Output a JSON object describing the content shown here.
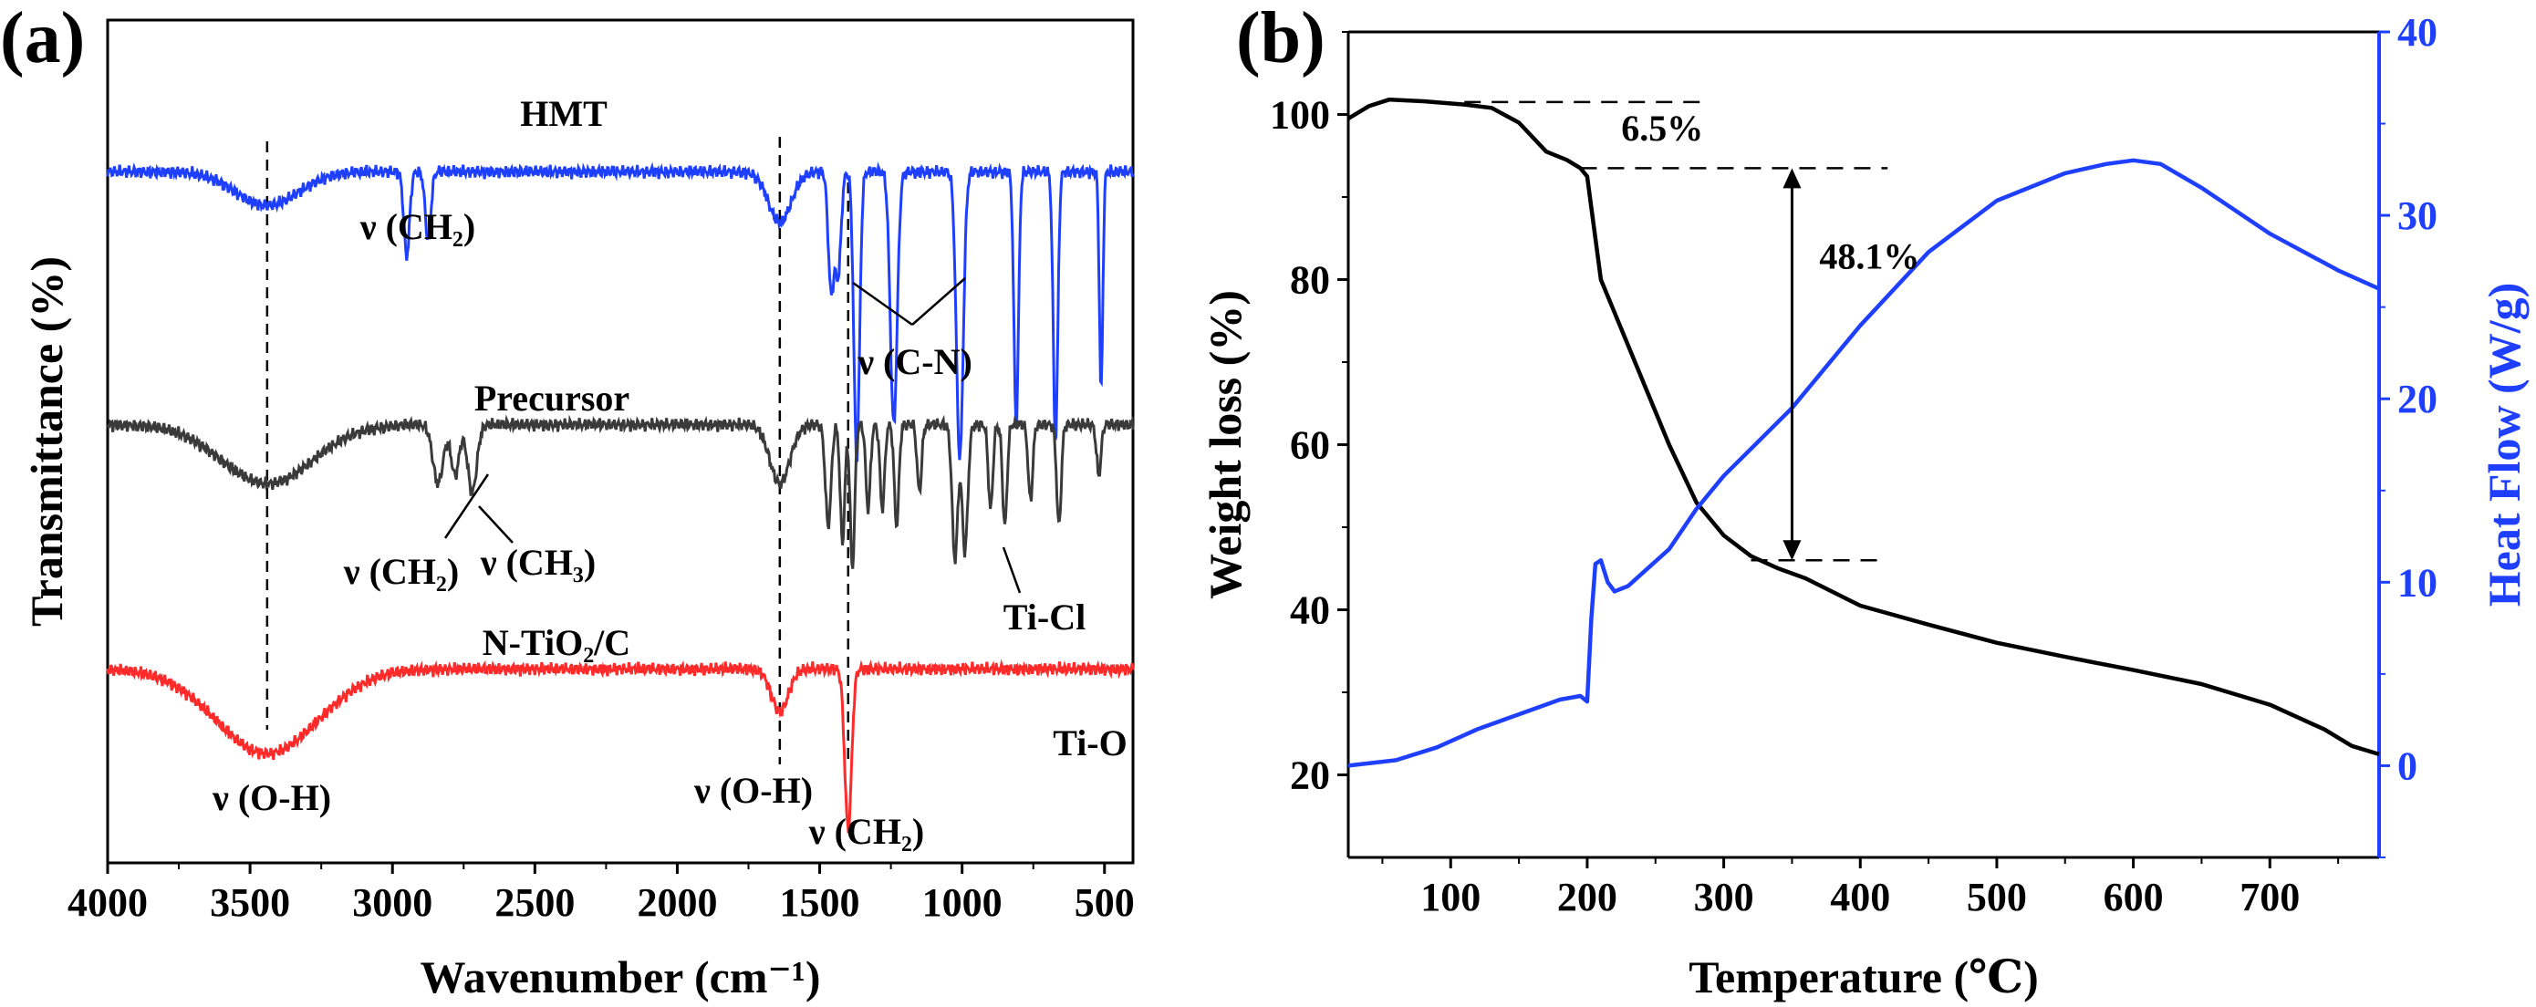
{
  "chart_data": [
    {
      "type": "line",
      "panel_label": "(a)",
      "title": "",
      "xlabel": "Wavenumber (cm⁻¹)",
      "ylabel": "Transmittance (%)",
      "xlim": [
        4000,
        400
      ],
      "x_reversed": true,
      "xticks": [
        4000,
        3500,
        3000,
        2500,
        2000,
        1500,
        1000,
        500
      ],
      "yticks_shown": false,
      "grid": false,
      "series": [
        {
          "name": "HMT",
          "label": "HMT",
          "color": "#1f3fff",
          "baseline": 0.82,
          "peaks": [
            {
              "x": 3440,
              "depth": 0.04,
              "width": 110
            },
            {
              "x": 2950,
              "depth": 0.1,
              "width": 10
            },
            {
              "x": 2875,
              "depth": 0.08,
              "width": 10
            },
            {
              "x": 1640,
              "depth": 0.06,
              "width": 40
            },
            {
              "x": 1460,
              "depth": 0.14,
              "width": 10
            },
            {
              "x": 1435,
              "depth": 0.12,
              "width": 10
            },
            {
              "x": 1370,
              "depth": 0.34,
              "width": 10
            },
            {
              "x": 1240,
              "depth": 0.3,
              "width": 12
            },
            {
              "x": 1008,
              "depth": 0.34,
              "width": 12
            },
            {
              "x": 810,
              "depth": 0.3,
              "width": 8
            },
            {
              "x": 672,
              "depth": 0.32,
              "width": 8
            },
            {
              "x": 512,
              "depth": 0.26,
              "width": 6
            }
          ]
        },
        {
          "name": "Precursor",
          "label": "Precursor",
          "color": "#3a3a3a",
          "baseline": 0.52,
          "peaks": [
            {
              "x": 3440,
              "depth": 0.07,
              "width": 160
            },
            {
              "x": 2840,
              "depth": 0.07,
              "width": 18
            },
            {
              "x": 2780,
              "depth": 0.06,
              "width": 14
            },
            {
              "x": 2720,
              "depth": 0.08,
              "width": 16
            },
            {
              "x": 1640,
              "depth": 0.07,
              "width": 35
            },
            {
              "x": 1470,
              "depth": 0.12,
              "width": 10
            },
            {
              "x": 1420,
              "depth": 0.14,
              "width": 8
            },
            {
              "x": 1385,
              "depth": 0.17,
              "width": 8
            },
            {
              "x": 1330,
              "depth": 0.1,
              "width": 8
            },
            {
              "x": 1280,
              "depth": 0.1,
              "width": 8
            },
            {
              "x": 1230,
              "depth": 0.12,
              "width": 8
            },
            {
              "x": 1150,
              "depth": 0.08,
              "width": 8
            },
            {
              "x": 1025,
              "depth": 0.16,
              "width": 10
            },
            {
              "x": 990,
              "depth": 0.15,
              "width": 10
            },
            {
              "x": 900,
              "depth": 0.1,
              "width": 8
            },
            {
              "x": 850,
              "depth": 0.12,
              "width": 8
            },
            {
              "x": 760,
              "depth": 0.09,
              "width": 8
            },
            {
              "x": 660,
              "depth": 0.12,
              "width": 8
            },
            {
              "x": 520,
              "depth": 0.06,
              "width": 8
            }
          ]
        },
        {
          "name": "N-TiO2/C",
          "label": "N-TiO₂/C",
          "color": "#ff2a2a",
          "baseline": 0.23,
          "peaks": [
            {
              "x": 3440,
              "depth": 0.1,
              "width": 180
            },
            {
              "x": 1640,
              "depth": 0.05,
              "width": 30
            },
            {
              "x": 1400,
              "depth": 0.19,
              "width": 12
            }
          ]
        }
      ],
      "reference_lines_x": [
        3440,
        1640,
        1400
      ],
      "annotations": [
        {
          "text": "ν (CH₂)",
          "x": 3050,
          "series": "HMT"
        },
        {
          "text": "ν (C-N)",
          "x": 1100,
          "series": "HMT"
        },
        {
          "text": "ν (CH₂)",
          "x": 2900,
          "series": "Precursor"
        },
        {
          "text": "ν (CH₃)",
          "x": 2650,
          "series": "Precursor"
        },
        {
          "text": "Ti-Cl",
          "x": 800,
          "series": "Precursor"
        },
        {
          "text": "Ti-O",
          "x": 480,
          "series": "N-TiO2/C"
        },
        {
          "text": "ν (O-H)",
          "x": 3440,
          "series": "N-TiO2/C"
        },
        {
          "text": "ν (O-H)",
          "x": 1640,
          "series": "N-TiO2/C"
        },
        {
          "text": "ν (CH₂)",
          "x": 1400,
          "series": "N-TiO2/C"
        }
      ]
    },
    {
      "type": "line",
      "panel_label": "(b)",
      "title": "",
      "xlabel": "Temperature (℃)",
      "ylabel": "Weight loss (%)",
      "ylabel_right": "Heat Flow (W/g)",
      "xlim": [
        25,
        780
      ],
      "ylim": [
        10,
        110
      ],
      "ylim_right": [
        -5,
        40
      ],
      "xticks": [
        100,
        200,
        300,
        400,
        500,
        600,
        700
      ],
      "yticks": [
        20,
        40,
        60,
        80,
        100
      ],
      "yticks_right": [
        0,
        10,
        20,
        30,
        40
      ],
      "grid": false,
      "series": [
        {
          "name": "Weight loss",
          "axis": "left",
          "color": "#000000",
          "x": [
            25,
            40,
            55,
            80,
            110,
            130,
            150,
            170,
            185,
            195,
            200,
            210,
            220,
            240,
            260,
            280,
            300,
            320,
            340,
            360,
            400,
            450,
            500,
            550,
            600,
            650,
            700,
            740,
            760,
            780
          ],
          "y": [
            99.5,
            101.0,
            101.8,
            101.6,
            101.2,
            100.8,
            99.0,
            95.5,
            94.5,
            93.5,
            92.5,
            80.0,
            76.0,
            68.0,
            60.0,
            53.0,
            49.0,
            46.5,
            45.0,
            43.8,
            40.5,
            38.2,
            36.0,
            34.3,
            32.7,
            31.0,
            28.5,
            25.5,
            23.5,
            22.5
          ]
        },
        {
          "name": "Heat flow",
          "axis": "right",
          "color": "#1f3fff",
          "x": [
            25,
            60,
            90,
            120,
            150,
            180,
            195,
            200,
            203,
            206,
            210,
            215,
            220,
            230,
            245,
            260,
            280,
            300,
            350,
            400,
            450,
            500,
            550,
            580,
            600,
            620,
            650,
            700,
            750,
            780
          ],
          "y": [
            0.0,
            0.3,
            1.0,
            2.0,
            2.8,
            3.6,
            3.8,
            3.5,
            8.0,
            11.0,
            11.2,
            10.0,
            9.5,
            9.8,
            10.8,
            11.8,
            14.0,
            15.8,
            19.5,
            24.0,
            28.0,
            30.8,
            32.3,
            32.8,
            33.0,
            32.8,
            31.5,
            29.0,
            27.0,
            26.0
          ]
        }
      ],
      "annotations": [
        {
          "text": "6.5%",
          "x": 255,
          "y": 98.5
        },
        {
          "text": "48.1%",
          "x": 370,
          "y": 83
        }
      ],
      "dashed_lines": [
        {
          "x": [
            110,
            290
          ],
          "y": [
            101.5,
            101.5
          ]
        },
        {
          "x": [
            195,
            420
          ],
          "y": [
            93.5,
            93.5
          ]
        },
        {
          "x": [
            320,
            420
          ],
          "y": [
            46.0,
            46.0
          ]
        }
      ],
      "arrow": {
        "x": 350,
        "y": [
          93.5,
          46.0
        ]
      }
    }
  ]
}
